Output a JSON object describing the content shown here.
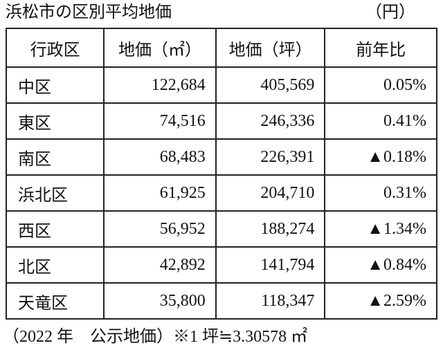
{
  "header": {
    "title": "浜松市の区別平均地価",
    "unit": "（円）"
  },
  "table": {
    "columns": [
      "行政区",
      "地価（㎡）",
      "地価（坪）",
      "前年比"
    ],
    "rows": [
      [
        "中区",
        "122,684",
        "405,569",
        "0.05%"
      ],
      [
        "東区",
        "74,516",
        "246,336",
        "0.41%"
      ],
      [
        "南区",
        "68,483",
        "226,391",
        "▲0.18%"
      ],
      [
        "浜北区",
        "61,925",
        "204,710",
        "0.31%"
      ],
      [
        "西区",
        "56,952",
        "188,274",
        "▲1.34%"
      ],
      [
        "北区",
        "42,892",
        "141,794",
        "▲0.84%"
      ],
      [
        "天竜区",
        "35,800",
        "118,347",
        "▲2.59%"
      ]
    ]
  },
  "footer": {
    "note": "（2022 年　公示地価）※1 坪≒3.30578 ㎡"
  }
}
